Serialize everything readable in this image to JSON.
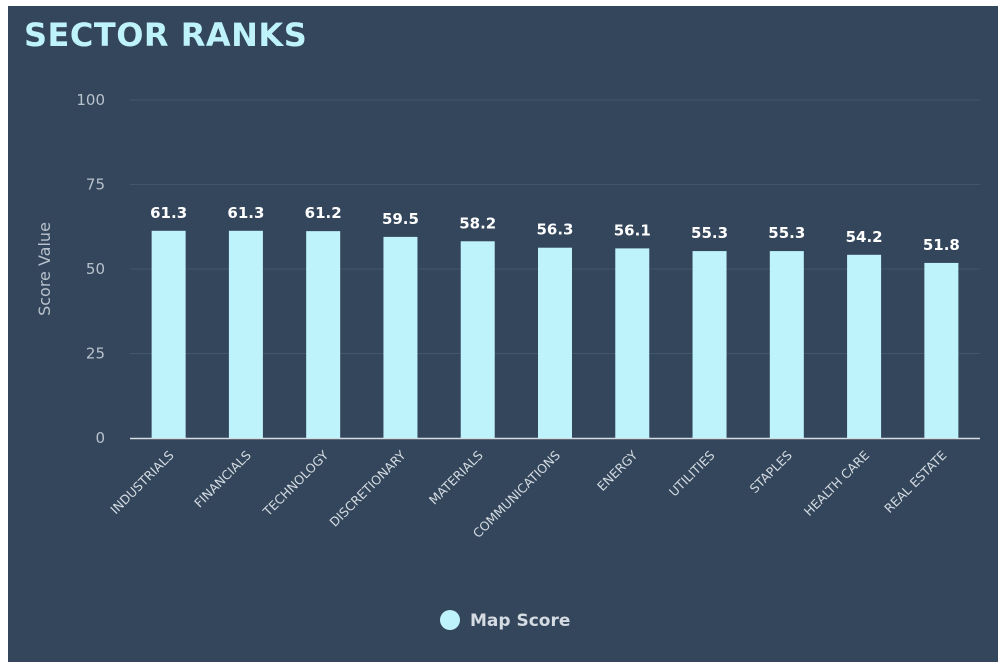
{
  "chart_data": {
    "type": "bar",
    "title": "SECTOR RANKS",
    "xlabel": "",
    "ylabel": "Score Value",
    "ylim": [
      0,
      100
    ],
    "yticks": [
      0,
      25,
      50,
      75,
      100
    ],
    "grid": true,
    "legend_position": "bottom-center",
    "categories": [
      "INDUSTRIALS",
      "FINANCIALS",
      "TECHNOLOGY",
      "DISCRETIONARY",
      "MATERIALS",
      "COMMUNICATIONS",
      "ENERGY",
      "UTILITIES",
      "STAPLES",
      "HEALTH CARE",
      "REAL ESTATE"
    ],
    "series": [
      {
        "name": "Map Score",
        "color": "#bff3fb",
        "values": [
          61.3,
          61.3,
          61.2,
          59.5,
          58.2,
          56.3,
          56.1,
          55.3,
          55.3,
          54.2,
          51.8
        ]
      }
    ]
  }
}
